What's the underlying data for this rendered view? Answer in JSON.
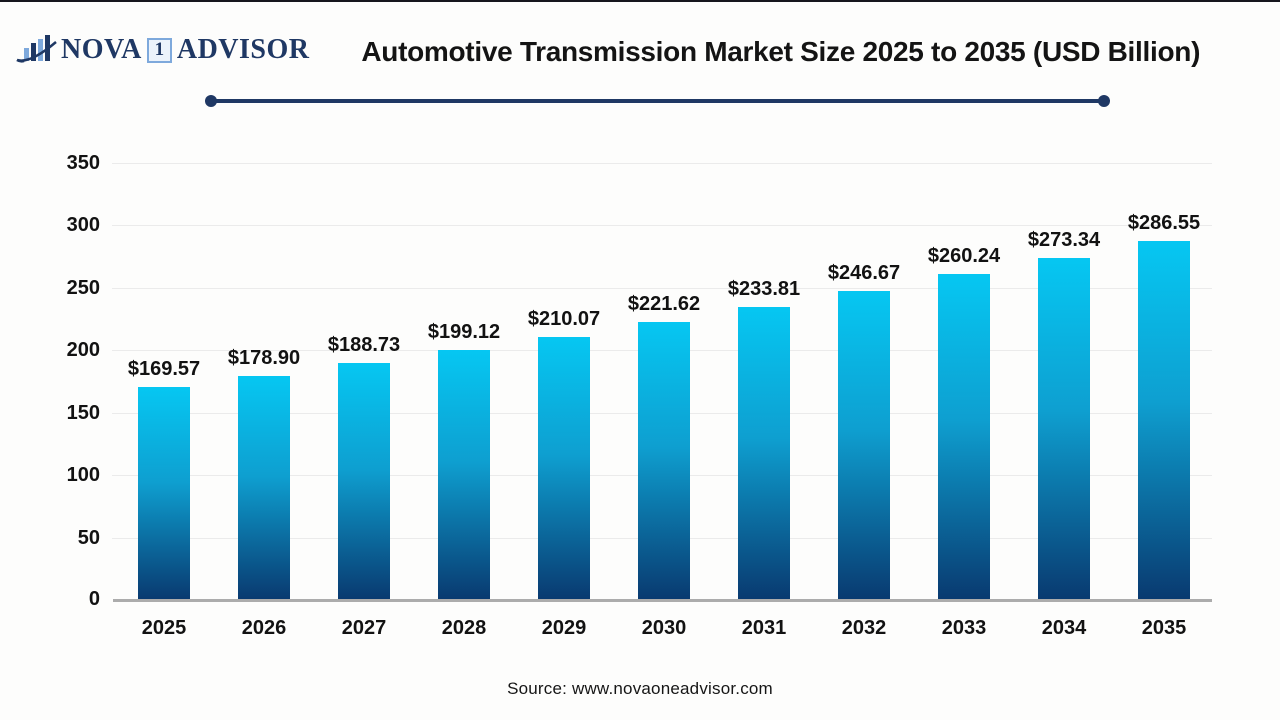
{
  "logo": {
    "part1": "NOVA",
    "part2": "1",
    "part3": "ADVISOR",
    "icon": "bar-chart-swoosh-icon"
  },
  "chart_data": {
    "type": "bar",
    "title": "Automotive Transmission Market Size 2025 to 2035  (USD Billion)",
    "categories": [
      "2025",
      "2026",
      "2027",
      "2028",
      "2029",
      "2030",
      "2031",
      "2032",
      "2033",
      "2034",
      "2035"
    ],
    "values": [
      169.57,
      178.9,
      188.73,
      199.12,
      210.07,
      221.62,
      233.81,
      246.67,
      260.24,
      273.34,
      286.55
    ],
    "value_labels": [
      "$169.57",
      "$178.90",
      "$188.73",
      "$199.12",
      "$210.07",
      "$221.62",
      "$233.81",
      "$246.67",
      "$260.24",
      "$273.34",
      "$286.55"
    ],
    "xlabel": "",
    "ylabel": "",
    "ylim": [
      0,
      350
    ],
    "yticks": [
      0,
      50,
      100,
      150,
      200,
      250,
      300,
      350
    ],
    "grid": "horizontal-light",
    "legend": "none"
  },
  "source": {
    "text": "Source: www.novaoneadvisor.com"
  },
  "colors": {
    "bar_top": "#06C7F2",
    "bar_mid": "#0E9FD0",
    "bar_bottom": "#093A70",
    "navy": "#1F3864",
    "logo_light_blue": "#7EA9DC",
    "grid": "#EBEBEB",
    "baseline": "#ACACAC"
  }
}
